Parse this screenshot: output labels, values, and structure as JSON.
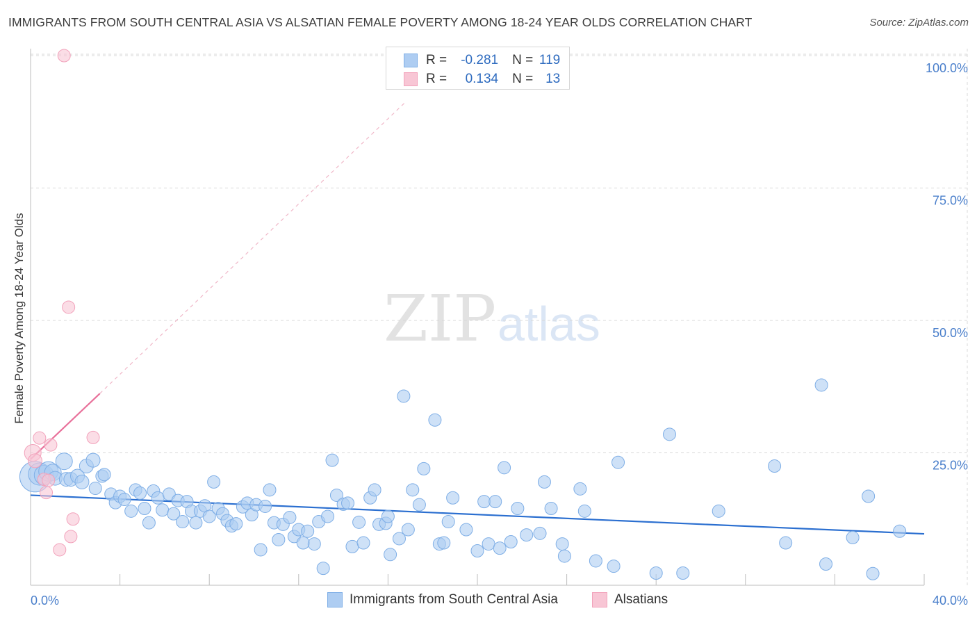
{
  "title": "IMMIGRANTS FROM SOUTH CENTRAL ASIA VS ALSATIAN FEMALE POVERTY AMONG 18-24 YEAR OLDS CORRELATION CHART",
  "source": "Source: ZipAtlas.com",
  "watermark": {
    "zip": "ZIP",
    "atlas": "atlas"
  },
  "colors": {
    "blue": "#7eaee6",
    "blue_fill": "#aecdf2",
    "blue_line": "#2b6fd0",
    "pink": "#f2a2bb",
    "pink_fill": "#f8c6d5",
    "pink_line": "#e8709a",
    "tick_text": "#4a7fcb",
    "grid": "#d8d8d8"
  },
  "legend": {
    "rows": [
      {
        "r_label": "R =",
        "r_value": "-0.281",
        "n_label": "N =",
        "n_value": "119",
        "color": "blue"
      },
      {
        "r_label": "R =",
        "r_value": "0.134",
        "n_label": "N =",
        "n_value": "13",
        "color": "pink"
      }
    ]
  },
  "chart_data": {
    "type": "scatter",
    "xlabel": "",
    "ylabel": "Female Poverty Among 18-24 Year Olds",
    "xlim": [
      0,
      40
    ],
    "ylim": [
      0,
      105
    ],
    "x_tick_labels": [
      {
        "value": 0,
        "label": "0.0%"
      },
      {
        "value": 40,
        "label": "40.0%"
      }
    ],
    "x_minor_ticks": [
      0,
      4,
      8,
      12,
      16,
      20,
      24,
      28,
      32,
      36,
      40
    ],
    "y_ticks": [
      {
        "value": 25,
        "label": "25.0%"
      },
      {
        "value": 50,
        "label": "50.0%"
      },
      {
        "value": 75,
        "label": "75.0%"
      },
      {
        "value": 100,
        "label": "100.0%"
      }
    ],
    "grid": "horizontal dashed",
    "legend_placement": "bottom",
    "series": [
      {
        "name": "Immigrants from South Central Asia",
        "color": "blue",
        "trend": {
          "x": [
            0,
            40
          ],
          "y": [
            17.0,
            9.7
          ]
        },
        "points": [
          [
            0.2,
            20.5,
            22
          ],
          [
            0.4,
            21.0,
            16
          ],
          [
            0.6,
            20.8,
            14
          ],
          [
            0.8,
            21.5,
            14
          ],
          [
            1.0,
            21.3,
            12
          ],
          [
            1.1,
            20.2,
            10
          ],
          [
            1.5,
            23.4,
            12
          ],
          [
            1.6,
            20.0,
            10
          ],
          [
            1.8,
            20.0,
            10
          ],
          [
            2.1,
            20.6,
            10
          ],
          [
            2.3,
            19.5,
            10
          ],
          [
            2.5,
            22.5,
            10
          ],
          [
            2.8,
            23.6,
            10
          ],
          [
            2.9,
            18.3,
            9
          ],
          [
            3.2,
            20.6,
            9
          ],
          [
            3.3,
            20.9,
            9
          ],
          [
            3.6,
            17.2,
            9
          ],
          [
            3.8,
            15.6,
            9
          ],
          [
            4.0,
            16.8,
            9
          ],
          [
            4.2,
            16.2,
            9
          ],
          [
            4.5,
            14.0,
            9
          ],
          [
            4.7,
            18.0,
            9
          ],
          [
            4.9,
            17.4,
            9
          ],
          [
            5.1,
            14.5,
            9
          ],
          [
            5.3,
            11.8,
            9
          ],
          [
            5.5,
            17.8,
            9
          ],
          [
            5.7,
            16.5,
            9
          ],
          [
            5.9,
            14.2,
            9
          ],
          [
            6.2,
            17.2,
            9
          ],
          [
            6.4,
            13.5,
            9
          ],
          [
            6.6,
            16.0,
            9
          ],
          [
            6.8,
            12.0,
            9
          ],
          [
            7.0,
            15.8,
            9
          ],
          [
            7.2,
            14.0,
            9
          ],
          [
            7.4,
            11.8,
            9
          ],
          [
            7.6,
            14.0,
            9
          ],
          [
            7.8,
            15.0,
            9
          ],
          [
            8.0,
            13.0,
            9
          ],
          [
            8.2,
            19.5,
            9
          ],
          [
            8.4,
            14.5,
            9
          ],
          [
            8.6,
            13.5,
            9
          ],
          [
            8.8,
            12.2,
            9
          ],
          [
            9.0,
            11.2,
            9
          ],
          [
            9.2,
            11.6,
            9
          ],
          [
            9.5,
            14.8,
            9
          ],
          [
            9.7,
            15.5,
            9
          ],
          [
            9.9,
            13.3,
            9
          ],
          [
            10.1,
            15.2,
            9
          ],
          [
            10.3,
            6.7,
            9
          ],
          [
            10.5,
            14.9,
            9
          ],
          [
            10.7,
            18.0,
            9
          ],
          [
            10.9,
            11.8,
            9
          ],
          [
            11.1,
            8.6,
            9
          ],
          [
            11.3,
            11.5,
            9
          ],
          [
            11.6,
            12.8,
            9
          ],
          [
            11.8,
            9.2,
            9
          ],
          [
            12.0,
            10.5,
            9
          ],
          [
            12.2,
            8.0,
            9
          ],
          [
            12.4,
            10.2,
            9
          ],
          [
            12.7,
            7.8,
            9
          ],
          [
            12.9,
            12.0,
            9
          ],
          [
            13.1,
            3.2,
            9
          ],
          [
            13.3,
            13.0,
            9
          ],
          [
            13.5,
            23.6,
            9
          ],
          [
            13.7,
            17.0,
            9
          ],
          [
            14.0,
            15.3,
            9
          ],
          [
            14.2,
            15.5,
            9
          ],
          [
            14.4,
            7.3,
            9
          ],
          [
            14.7,
            11.9,
            9
          ],
          [
            14.9,
            8.0,
            9
          ],
          [
            15.2,
            16.5,
            9
          ],
          [
            15.4,
            18.0,
            9
          ],
          [
            15.6,
            11.5,
            9
          ],
          [
            15.9,
            11.7,
            9
          ],
          [
            16.0,
            13.0,
            9
          ],
          [
            16.1,
            5.8,
            9
          ],
          [
            16.5,
            8.8,
            9
          ],
          [
            16.7,
            35.7,
            9
          ],
          [
            16.9,
            10.5,
            9
          ],
          [
            17.1,
            18.0,
            9
          ],
          [
            17.4,
            15.2,
            9
          ],
          [
            17.6,
            22.0,
            9
          ],
          [
            18.1,
            31.2,
            9
          ],
          [
            18.3,
            7.8,
            9
          ],
          [
            18.5,
            8.0,
            9
          ],
          [
            18.7,
            12.0,
            9
          ],
          [
            18.9,
            16.5,
            9
          ],
          [
            19.5,
            10.5,
            9
          ],
          [
            20.0,
            6.5,
            9
          ],
          [
            20.3,
            15.8,
            9
          ],
          [
            20.5,
            7.8,
            9
          ],
          [
            20.8,
            15.8,
            9
          ],
          [
            21.0,
            7.0,
            9
          ],
          [
            21.2,
            22.2,
            9
          ],
          [
            21.5,
            8.2,
            9
          ],
          [
            21.8,
            14.5,
            9
          ],
          [
            22.2,
            9.5,
            9
          ],
          [
            22.8,
            9.8,
            9
          ],
          [
            23.0,
            19.5,
            9
          ],
          [
            23.3,
            14.5,
            9
          ],
          [
            23.8,
            7.8,
            9
          ],
          [
            23.9,
            5.5,
            9
          ],
          [
            24.6,
            18.2,
            9
          ],
          [
            24.8,
            14.0,
            9
          ],
          [
            25.3,
            4.6,
            9
          ],
          [
            26.1,
            3.6,
            9
          ],
          [
            26.3,
            23.2,
            9
          ],
          [
            28.0,
            2.3,
            9
          ],
          [
            28.6,
            28.5,
            9
          ],
          [
            29.2,
            2.3,
            9
          ],
          [
            30.8,
            14.0,
            9
          ],
          [
            33.3,
            22.5,
            9
          ],
          [
            33.8,
            8.0,
            9
          ],
          [
            35.4,
            37.8,
            9
          ],
          [
            35.6,
            4.0,
            9
          ],
          [
            36.8,
            9.0,
            9
          ],
          [
            37.5,
            16.8,
            9
          ],
          [
            37.7,
            2.2,
            9
          ],
          [
            38.9,
            10.2,
            9
          ]
        ]
      },
      {
        "name": "Alsatians",
        "color": "pink",
        "trend": {
          "x": [
            0,
            3.1
          ],
          "y": [
            23.8,
            36.2
          ]
        },
        "trend_extension": {
          "x": [
            3.1,
            16.8
          ],
          "y": [
            36.2,
            91.3
          ]
        },
        "points": [
          [
            0.1,
            25.0,
            12
          ],
          [
            0.2,
            23.5,
            10
          ],
          [
            0.4,
            27.8,
            9
          ],
          [
            0.6,
            20.0,
            9
          ],
          [
            0.7,
            17.5,
            9
          ],
          [
            0.8,
            19.8,
            9
          ],
          [
            0.9,
            26.5,
            9
          ],
          [
            1.3,
            6.7,
            9
          ],
          [
            1.5,
            100.0,
            9
          ],
          [
            1.7,
            52.5,
            9
          ],
          [
            1.8,
            9.2,
            9
          ],
          [
            1.9,
            12.5,
            9
          ],
          [
            2.8,
            27.9,
            9
          ]
        ]
      }
    ]
  }
}
